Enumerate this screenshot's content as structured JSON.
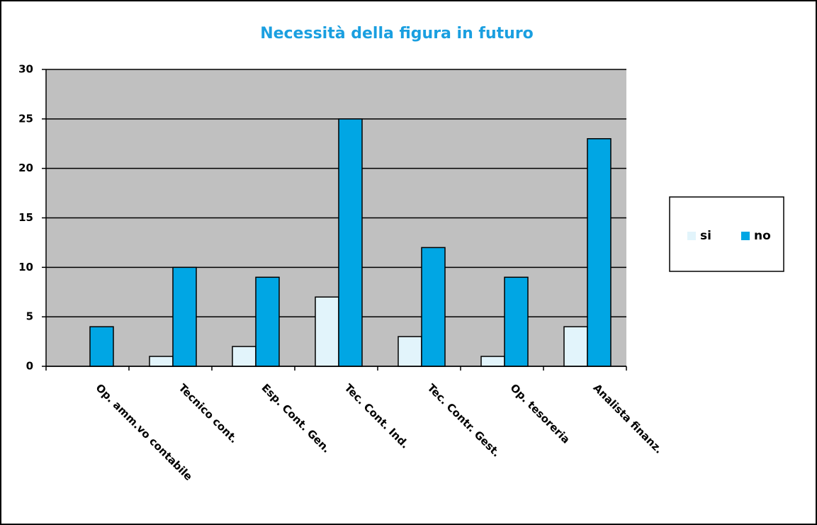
{
  "chart_data": {
    "type": "bar",
    "title": "Necessità della figura in futuro",
    "categories": [
      "Op. amm.vo contabile",
      "Tecnico cont.",
      "Esp. Cont. Gen.",
      "Tec. Cont. Ind.",
      "Tec. Contr. Gest.",
      "Op. tesoreria",
      "Analista finanz."
    ],
    "series": [
      {
        "name": "si",
        "color": "#e2f4fb",
        "values": [
          0,
          1,
          2,
          7,
          3,
          1,
          4
        ]
      },
      {
        "name": "no",
        "color": "#00a6e4",
        "values": [
          4,
          10,
          9,
          25,
          12,
          9,
          23
        ]
      }
    ],
    "ylim": [
      0,
      30
    ],
    "yticks": [
      0,
      5,
      10,
      15,
      20,
      25,
      30
    ],
    "grid": true,
    "legend": "right"
  }
}
